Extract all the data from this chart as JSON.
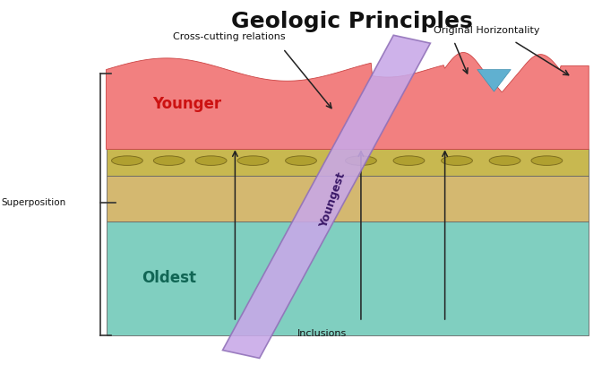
{
  "title": "Geologic Principles",
  "title_fontsize": 18,
  "title_fontweight": "bold",
  "bg_color": "#ffffff",
  "oldest_color": "#80cfc0",
  "middle_color": "#d4b870",
  "pebble_color": "#c8c060",
  "younger_color": "#f28080",
  "dike_color": "#c8a8e8",
  "dike_edge_color": "#9070b8",
  "bracket_color": "#333333",
  "arrow_color": "#333333",
  "label_youngest": "Youngest",
  "label_younger": "Younger",
  "label_oldest": "Oldest",
  "label_superposition": "Superposition",
  "label_cross_cutting": "Cross-cutting relations",
  "label_original_h": "Original Horizontality",
  "label_inclusions": "Inclusions",
  "L": 0.175,
  "R": 0.98,
  "B": 0.12,
  "OT": 0.42,
  "MT": 0.54,
  "PT": 0.61,
  "YB": 0.61,
  "YT": 0.82
}
